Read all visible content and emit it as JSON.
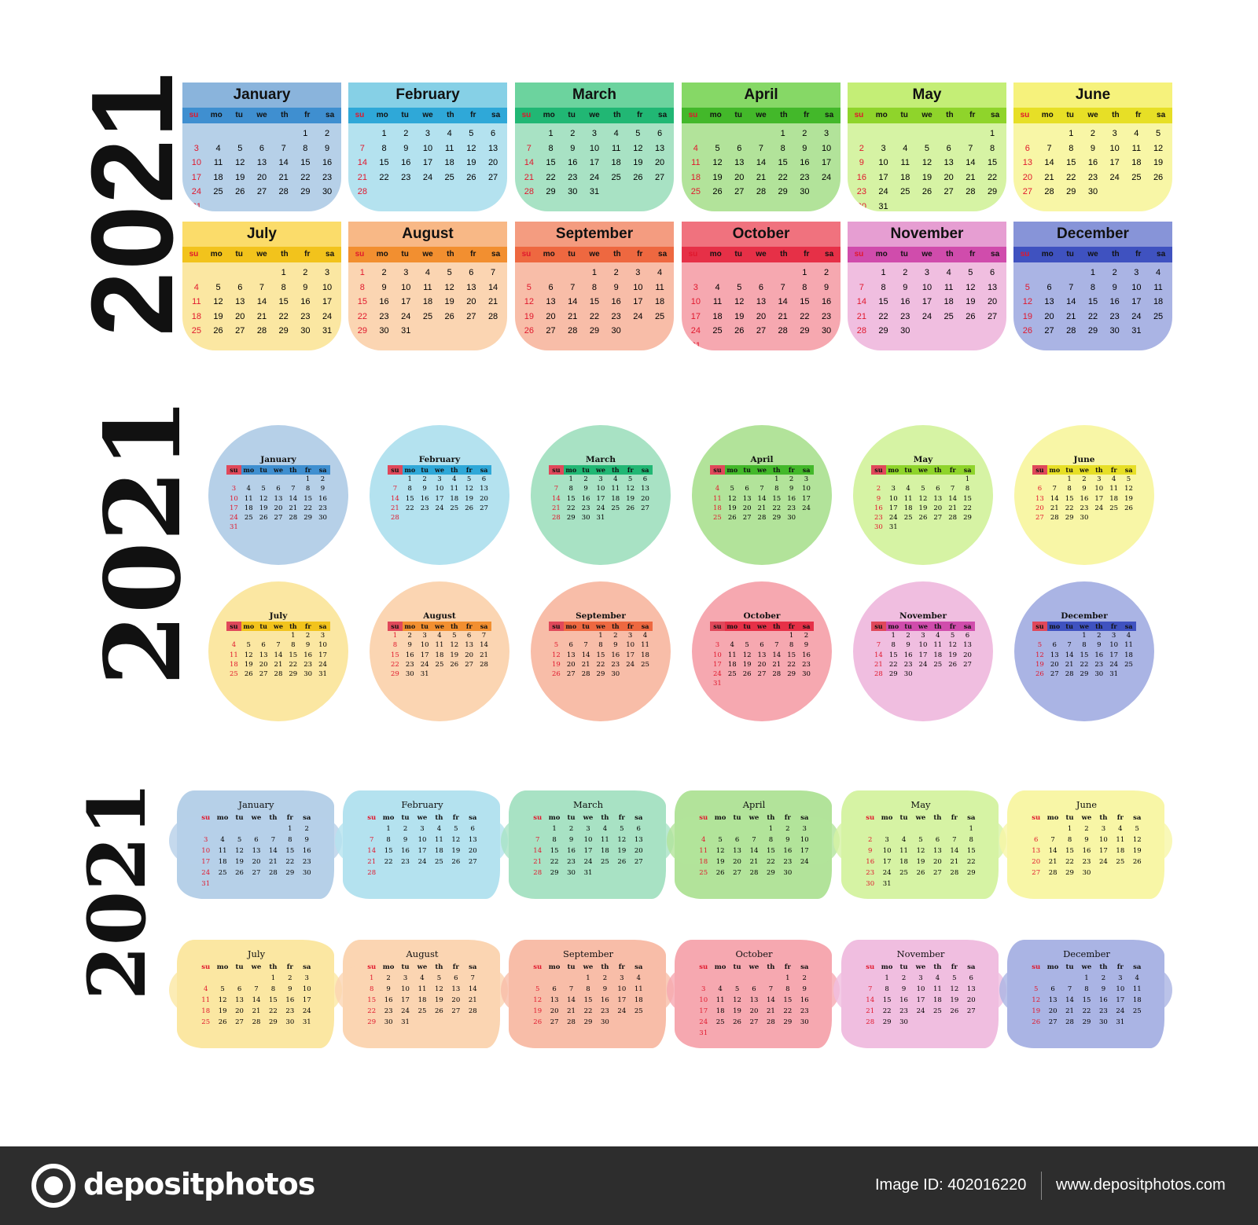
{
  "year_label": "2021",
  "day_headers": [
    "su",
    "mo",
    "tu",
    "we",
    "th",
    "fr",
    "sa"
  ],
  "months": [
    {
      "name": "January",
      "offset": 5,
      "days": 31,
      "bg": "#b6d0e8",
      "head": "#8ab4dc",
      "bar": "#3f8fd0"
    },
    {
      "name": "February",
      "offset": 1,
      "days": 28,
      "bg": "#b4e2ef",
      "head": "#86d0e6",
      "bar": "#2fa8d8"
    },
    {
      "name": "March",
      "offset": 1,
      "days": 31,
      "bg": "#a8e2c4",
      "head": "#6cd39e",
      "bar": "#21b774"
    },
    {
      "name": "April",
      "offset": 4,
      "days": 30,
      "bg": "#b2e39a",
      "head": "#86d866",
      "bar": "#43b82a"
    },
    {
      "name": "May",
      "offset": 6,
      "days": 31,
      "bg": "#d6f3a4",
      "head": "#c4ee76",
      "bar": "#8fd42b"
    },
    {
      "name": "June",
      "offset": 2,
      "days": 30,
      "bg": "#f8f6a6",
      "head": "#f6f27c",
      "bar": "#e7df26"
    },
    {
      "name": "July",
      "offset": 4,
      "days": 31,
      "bg": "#fbe7a2",
      "head": "#fbdc6a",
      "bar": "#f2c31c"
    },
    {
      "name": "August",
      "offset": 0,
      "days": 31,
      "bg": "#fbd5b2",
      "head": "#f8b886",
      "bar": "#f28f30"
    },
    {
      "name": "September",
      "offset": 3,
      "days": 30,
      "bg": "#f8bda8",
      "head": "#f49c80",
      "bar": "#ee6840"
    },
    {
      "name": "October",
      "offset": 5,
      "days": 31,
      "bg": "#f6a8b0",
      "head": "#f0727e",
      "bar": "#e63047"
    },
    {
      "name": "November",
      "offset": 1,
      "days": 30,
      "bg": "#f0bee0",
      "head": "#e69ed2",
      "bar": "#d04cac"
    },
    {
      "name": "December",
      "offset": 3,
      "days": 31,
      "bg": "#aab4e4",
      "head": "#8794d8",
      "bar": "#3f52c0"
    }
  ],
  "footer": {
    "logo_text": "depositphotos",
    "image_id": "Image ID: 402016220",
    "site_url": "www.depositphotos.com",
    "bg_color": "#2d2d2d"
  }
}
